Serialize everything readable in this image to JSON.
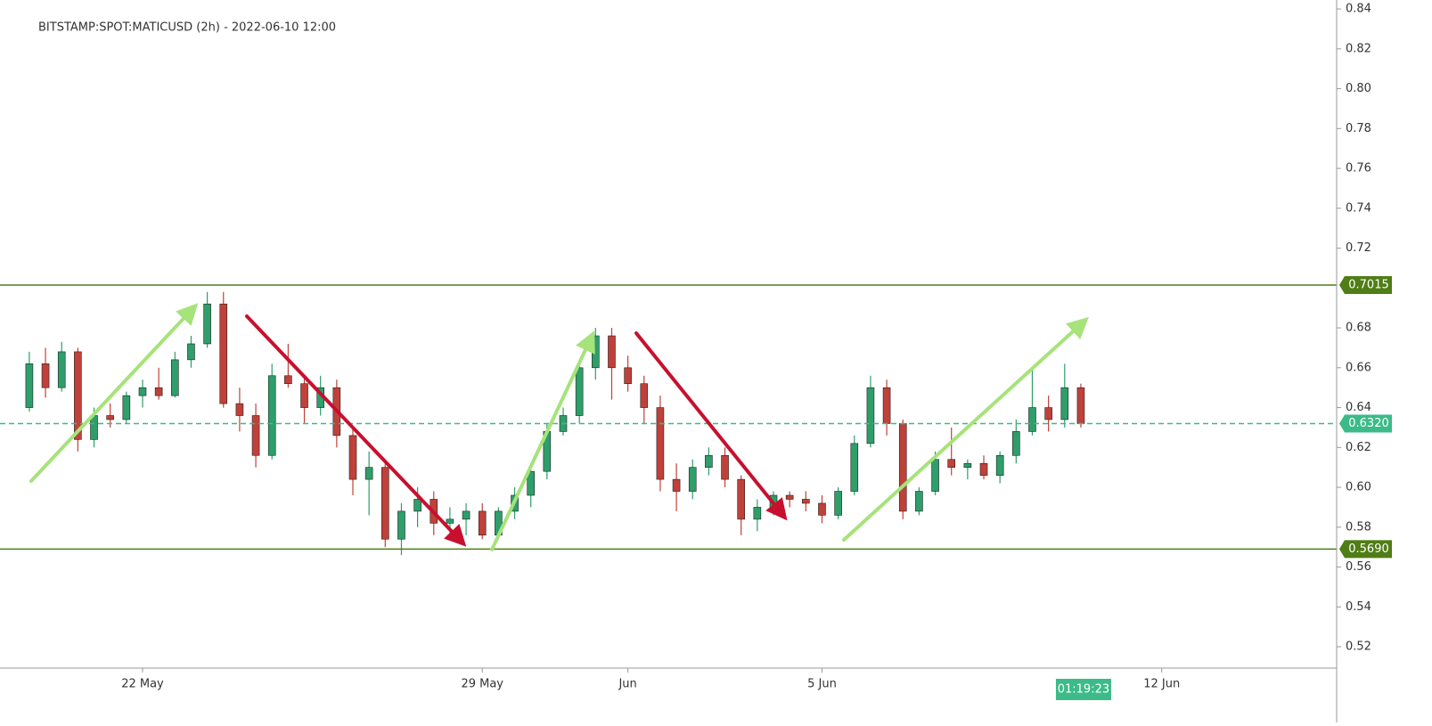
{
  "chart_data": {
    "type": "candlestick",
    "title": "BITSTAMP:SPOT:MATICUSD (2h) - 2022-06-10 12:00",
    "up_color": "#2e9e6b",
    "down_color": "#c0413a",
    "x": [
      "2022-05-19 16:00",
      "2022-05-20 00:00",
      "2022-05-20 08:00",
      "2022-05-20 16:00",
      "2022-05-21 00:00",
      "2022-05-21 08:00",
      "2022-05-21 16:00",
      "2022-05-22 00:00",
      "2022-05-22 08:00",
      "2022-05-22 16:00",
      "2022-05-23 00:00",
      "2022-05-23 08:00",
      "2022-05-23 16:00",
      "2022-05-24 00:00",
      "2022-05-24 08:00",
      "2022-05-24 16:00",
      "2022-05-25 00:00",
      "2022-05-25 08:00",
      "2022-05-25 16:00",
      "2022-05-26 00:00",
      "2022-05-26 08:00",
      "2022-05-26 16:00",
      "2022-05-27 00:00",
      "2022-05-27 08:00",
      "2022-05-27 16:00",
      "2022-05-28 00:00",
      "2022-05-28 08:00",
      "2022-05-28 16:00",
      "2022-05-29 00:00",
      "2022-05-29 08:00",
      "2022-05-29 16:00",
      "2022-05-30 00:00",
      "2022-05-30 08:00",
      "2022-05-30 16:00",
      "2022-05-31 00:00",
      "2022-05-31 08:00",
      "2022-05-31 16:00",
      "2022-06-01 00:00",
      "2022-06-01 08:00",
      "2022-06-01 16:00",
      "2022-06-02 00:00",
      "2022-06-02 08:00",
      "2022-06-02 16:00",
      "2022-06-03 00:00",
      "2022-06-03 08:00",
      "2022-06-03 16:00",
      "2022-06-04 00:00",
      "2022-06-04 08:00",
      "2022-06-04 16:00",
      "2022-06-05 00:00",
      "2022-06-05 08:00",
      "2022-06-05 16:00",
      "2022-06-06 00:00",
      "2022-06-06 08:00",
      "2022-06-06 16:00",
      "2022-06-07 00:00",
      "2022-06-07 08:00",
      "2022-06-07 16:00",
      "2022-06-08 00:00",
      "2022-06-08 08:00",
      "2022-06-08 16:00",
      "2022-06-09 00:00",
      "2022-06-09 08:00",
      "2022-06-09 16:00",
      "2022-06-10 00:00",
      "2022-06-10 08:00"
    ],
    "open": [
      0.64,
      0.662,
      0.65,
      0.668,
      0.624,
      0.636,
      0.634,
      0.646,
      0.65,
      0.646,
      0.664,
      0.672,
      0.692,
      0.642,
      0.636,
      0.616,
      0.656,
      0.652,
      0.64,
      0.65,
      0.626,
      0.604,
      0.61,
      0.574,
      0.588,
      0.594,
      0.582,
      0.584,
      0.588,
      0.576,
      0.588,
      0.596,
      0.608,
      0.628,
      0.636,
      0.66,
      0.676,
      0.66,
      0.652,
      0.64,
      0.604,
      0.598,
      0.61,
      0.616,
      0.604,
      0.584,
      0.59,
      0.596,
      0.594,
      0.592,
      0.586,
      0.598,
      0.622,
      0.65,
      0.632,
      0.588,
      0.598,
      0.614,
      0.61,
      0.612,
      0.606,
      0.616,
      0.628,
      0.64,
      0.634,
      0.65
    ],
    "high": [
      0.668,
      0.67,
      0.673,
      0.67,
      0.64,
      0.642,
      0.648,
      0.654,
      0.66,
      0.668,
      0.676,
      0.698,
      0.698,
      0.65,
      0.642,
      0.662,
      0.672,
      0.656,
      0.656,
      0.654,
      0.63,
      0.618,
      0.612,
      0.592,
      0.6,
      0.598,
      0.59,
      0.592,
      0.592,
      0.59,
      0.6,
      0.612,
      0.632,
      0.64,
      0.664,
      0.68,
      0.68,
      0.666,
      0.656,
      0.646,
      0.612,
      0.614,
      0.62,
      0.62,
      0.606,
      0.594,
      0.598,
      0.598,
      0.598,
      0.596,
      0.6,
      0.626,
      0.656,
      0.654,
      0.634,
      0.6,
      0.618,
      0.63,
      0.614,
      0.616,
      0.618,
      0.634,
      0.66,
      0.646,
      0.662,
      0.652
    ],
    "low": [
      0.638,
      0.645,
      0.648,
      0.618,
      0.62,
      0.63,
      0.632,
      0.64,
      0.644,
      0.645,
      0.66,
      0.67,
      0.64,
      0.628,
      0.61,
      0.614,
      0.65,
      0.632,
      0.636,
      0.62,
      0.596,
      0.586,
      0.57,
      0.566,
      0.58,
      0.576,
      0.574,
      0.576,
      0.574,
      0.574,
      0.584,
      0.59,
      0.604,
      0.626,
      0.632,
      0.654,
      0.644,
      0.648,
      0.632,
      0.598,
      0.588,
      0.594,
      0.606,
      0.6,
      0.576,
      0.578,
      0.586,
      0.59,
      0.588,
      0.582,
      0.584,
      0.596,
      0.62,
      0.626,
      0.584,
      0.586,
      0.596,
      0.606,
      0.604,
      0.604,
      0.602,
      0.612,
      0.626,
      0.628,
      0.63,
      0.63
    ],
    "close": [
      0.662,
      0.65,
      0.668,
      0.624,
      0.636,
      0.634,
      0.646,
      0.65,
      0.646,
      0.664,
      0.672,
      0.692,
      0.642,
      0.636,
      0.616,
      0.656,
      0.652,
      0.64,
      0.65,
      0.626,
      0.604,
      0.61,
      0.574,
      0.588,
      0.594,
      0.582,
      0.584,
      0.588,
      0.576,
      0.588,
      0.596,
      0.608,
      0.628,
      0.636,
      0.66,
      0.676,
      0.66,
      0.652,
      0.64,
      0.604,
      0.598,
      0.61,
      0.616,
      0.604,
      0.584,
      0.59,
      0.596,
      0.594,
      0.592,
      0.586,
      0.598,
      0.622,
      0.65,
      0.632,
      0.588,
      0.598,
      0.614,
      0.61,
      0.612,
      0.606,
      0.616,
      0.628,
      0.64,
      0.634,
      0.65,
      0.632
    ],
    "xlim": [
      "2022-05-19 01:30",
      "2022-06-15 14:30"
    ],
    "xticks": [
      {
        "value": "2022-05-22 00:00",
        "label": "22 May"
      },
      {
        "value": "2022-05-29 00:00",
        "label": "29 May"
      },
      {
        "value": "2022-06-01 00:00",
        "label": "Jun"
      },
      {
        "value": "2022-06-05 00:00",
        "label": "5 Jun"
      },
      {
        "value": "2022-06-12 00:00",
        "label": "12 Jun"
      }
    ],
    "ylim": [
      0.5093,
      0.8445
    ],
    "yticks": [
      0.52,
      0.54,
      0.56,
      0.58,
      {
        "value": 0.6,
        "label": "0.60"
      },
      0.62,
      0.64,
      0.66,
      0.68,
      0.72,
      0.74,
      0.76,
      0.78,
      {
        "value": 0.8,
        "label": "0.80"
      },
      0.82,
      0.84
    ],
    "price_lines": [
      {
        "value": 0.7015,
        "label": "0.7015",
        "color": "#4f7d16",
        "style": "solid"
      },
      {
        "value": 0.569,
        "label": "0.5690",
        "color": "#4f7d16",
        "style": "solid"
      },
      {
        "value": 0.632,
        "label": "0.6320",
        "color": "#3cbb88",
        "style": "dashed"
      }
    ],
    "countdown": "01:19:23"
  }
}
